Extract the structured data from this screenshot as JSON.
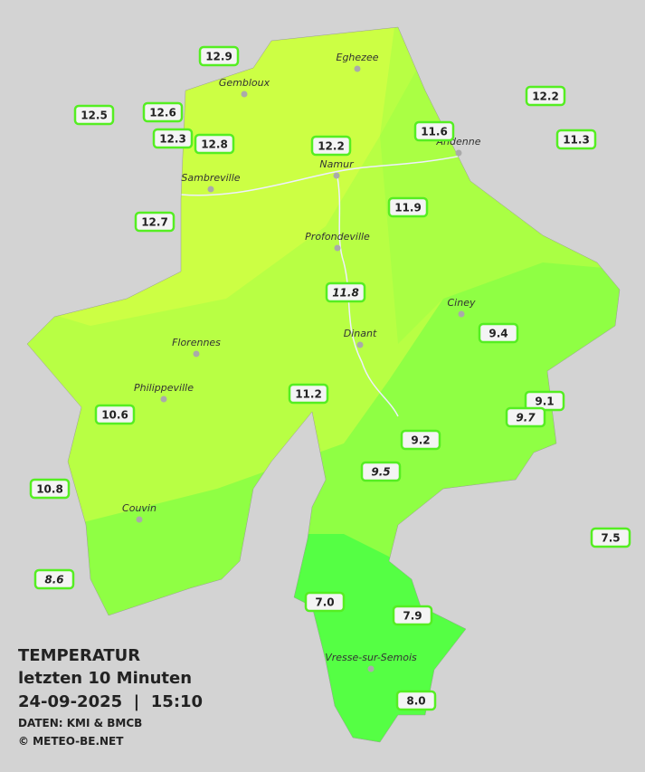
{
  "map": {
    "cities": [
      "Eghezee",
      "Gembloux",
      "Andenne",
      "Namur",
      "Sambreville",
      "Profondeville",
      "Ciney",
      "Dinant",
      "Florennes",
      "Philippeville",
      "Couvin",
      "Vresse-sur-Semois"
    ],
    "stations": [
      "12.9",
      "12.5",
      "12.6",
      "12.3",
      "12.8",
      "12.2",
      "11.6",
      "12.2",
      "11.3",
      "12.7",
      "11.9",
      "11.8",
      "9.4",
      "11.2",
      "10.6",
      "9.1",
      "9.7",
      "9.2",
      "9.5",
      "10.8",
      "7.5",
      "8.6",
      "7.0",
      "7.9",
      "8.0"
    ]
  },
  "legend": {
    "title": "TEMPERATUR",
    "subtitle": "letzten 10 Minuten",
    "datetime": "24-09-2025  |  15:10",
    "source": "DATEN: KMI & BMCB",
    "copyright": "© METEO-BE.NET"
  }
}
